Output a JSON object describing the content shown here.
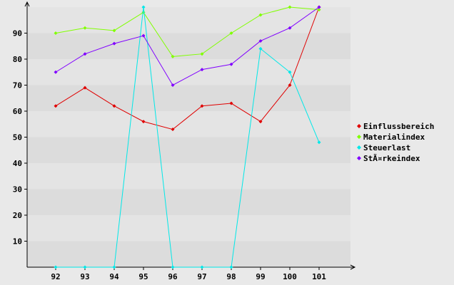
{
  "chart_data": {
    "type": "line",
    "title": "",
    "xlabel": "",
    "ylabel": "",
    "categories": [
      "92",
      "93",
      "94",
      "95",
      "96",
      "97",
      "98",
      "99",
      "100",
      "101"
    ],
    "y_ticks": [
      "10",
      "20",
      "30",
      "40",
      "50",
      "60",
      "70",
      "80",
      "90"
    ],
    "ylim": [
      0,
      100
    ],
    "grid": "horizontal bands",
    "legend_position": "right",
    "series": [
      {
        "name": "Einflussbereich",
        "color": "#e00000",
        "values": [
          62,
          69,
          62,
          56,
          53,
          62,
          63,
          56,
          70,
          100
        ]
      },
      {
        "name": "Materialindex",
        "color": "#80ff00",
        "values": [
          90,
          92,
          91,
          98,
          81,
          82,
          90,
          97,
          100,
          99
        ]
      },
      {
        "name": "Steuerlast",
        "color": "#00e8e8",
        "values": [
          0,
          0,
          0,
          100,
          0,
          0,
          0,
          84,
          75,
          48
        ]
      },
      {
        "name": "StÃ¤rkeindex",
        "color": "#8000ff",
        "values": [
          75,
          82,
          86,
          89,
          70,
          76,
          78,
          87,
          92,
          100
        ]
      }
    ]
  }
}
